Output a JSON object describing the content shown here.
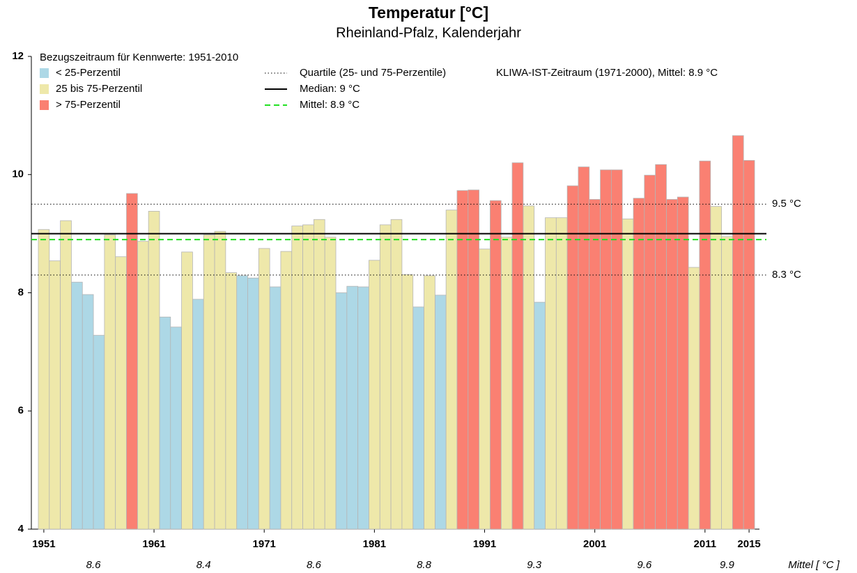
{
  "chart_data": {
    "type": "bar",
    "title": "Temperatur [°C]",
    "subtitle": "Rheinland-Pfalz, Kalenderjahr",
    "reference_period": "Bezugszeitraum für Kennwerte: 1951-2010",
    "kliwa_note": "KLIWA-IST-Zeitraum (1971-2000), Mittel: 8.9 °C",
    "quartile_legend": "Quartile (25- und 75-Perzentile)",
    "x": [
      1951,
      1952,
      1953,
      1954,
      1955,
      1956,
      1957,
      1958,
      1959,
      1960,
      1961,
      1962,
      1963,
      1964,
      1965,
      1966,
      1967,
      1968,
      1969,
      1970,
      1971,
      1972,
      1973,
      1974,
      1975,
      1976,
      1977,
      1978,
      1979,
      1980,
      1981,
      1982,
      1983,
      1984,
      1985,
      1986,
      1987,
      1988,
      1989,
      1990,
      1991,
      1992,
      1993,
      1994,
      1995,
      1996,
      1997,
      1998,
      1999,
      2000,
      2001,
      2002,
      2003,
      2004,
      2005,
      2006,
      2007,
      2008,
      2009,
      2010,
      2011,
      2012,
      2013,
      2014,
      2015
    ],
    "xlim": [
      1950.5,
      2015.5
    ],
    "xticks": [
      1951,
      1961,
      1971,
      1981,
      1991,
      2001,
      2011,
      2015
    ],
    "ylim": [
      4,
      12
    ],
    "yticks": [
      4,
      6,
      8,
      10,
      12
    ],
    "series": [
      {
        "name": "< 25-Perzentil",
        "color": "#add8e6",
        "values": [
          null,
          null,
          null,
          8.18,
          7.97,
          7.28,
          null,
          null,
          null,
          null,
          null,
          7.59,
          7.42,
          null,
          7.89,
          null,
          null,
          null,
          8.29,
          8.25,
          null,
          8.1,
          null,
          null,
          null,
          null,
          null,
          8.0,
          8.11,
          8.1,
          null,
          null,
          null,
          null,
          7.76,
          null,
          7.96,
          null,
          null,
          null,
          null,
          null,
          null,
          null,
          null,
          7.84,
          null,
          null,
          null,
          null,
          null,
          null,
          null,
          null,
          null,
          null,
          null,
          null,
          null,
          null,
          null,
          null,
          null,
          null,
          null
        ]
      },
      {
        "name": "25 bis 75-Perzentil",
        "color": "#eee8aa",
        "values": [
          9.07,
          8.54,
          9.22,
          null,
          null,
          null,
          8.98,
          8.61,
          null,
          8.87,
          9.38,
          null,
          null,
          8.69,
          null,
          8.98,
          9.04,
          8.34,
          null,
          null,
          8.75,
          null,
          8.7,
          9.13,
          9.15,
          9.24,
          8.94,
          null,
          null,
          null,
          8.55,
          9.15,
          9.24,
          8.31,
          null,
          8.29,
          null,
          9.4,
          null,
          null,
          8.74,
          null,
          8.94,
          null,
          9.47,
          null,
          9.27,
          9.27,
          null,
          null,
          null,
          null,
          null,
          9.25,
          null,
          null,
          null,
          null,
          null,
          8.43,
          null,
          9.46,
          8.95,
          null,
          null
        ]
      },
      {
        "name": "> 75-Perzentil",
        "color": "#fa8072",
        "values": [
          null,
          null,
          null,
          null,
          null,
          null,
          null,
          null,
          9.68,
          null,
          null,
          null,
          null,
          null,
          null,
          null,
          null,
          null,
          null,
          null,
          null,
          null,
          null,
          null,
          null,
          null,
          null,
          null,
          null,
          null,
          null,
          null,
          null,
          null,
          null,
          null,
          null,
          null,
          9.73,
          9.74,
          null,
          9.56,
          null,
          10.2,
          null,
          null,
          null,
          null,
          9.81,
          10.13,
          9.58,
          10.08,
          10.08,
          null,
          9.6,
          9.99,
          10.17,
          9.58,
          9.62,
          null,
          10.23,
          null,
          null,
          10.66,
          10.24
        ]
      }
    ],
    "hlines": [
      {
        "value": 9.5,
        "label": "9.5 °C",
        "style": "dotted",
        "color": "#000000"
      },
      {
        "value": 8.3,
        "label": "8.3 °C",
        "style": "dotted",
        "color": "#000000"
      },
      {
        "value": 9,
        "legend": "Median: 9 °C",
        "style": "solid",
        "color": "#000000"
      },
      {
        "value": 8.9,
        "legend": "Mittel: 8.9 °C",
        "style": "dashed",
        "color": "#22e022"
      }
    ],
    "period_means_label": "Mittel [ °C ]",
    "period_means": [
      8.6,
      8.4,
      8.6,
      8.8,
      9.3,
      9.6,
      9.9
    ]
  }
}
